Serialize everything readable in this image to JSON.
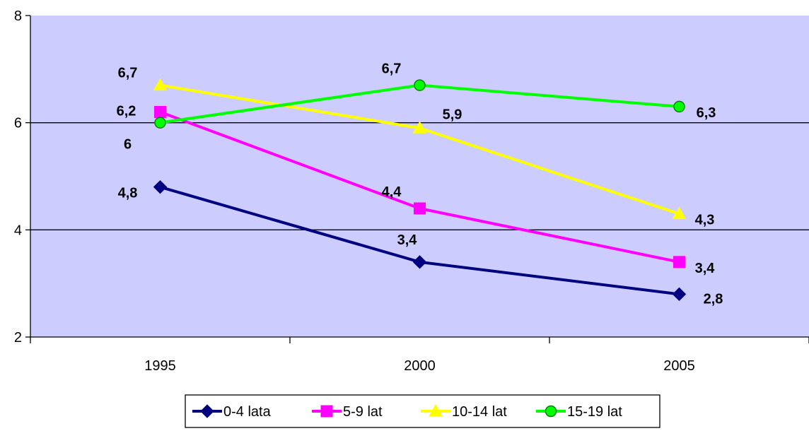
{
  "chart_data": {
    "type": "line",
    "title": "",
    "xlabel": "",
    "ylabel": "",
    "categories": [
      "1995",
      "2000",
      "2005"
    ],
    "ylim": [
      2,
      8
    ],
    "yticks": [
      2,
      4,
      6,
      8
    ],
    "y_gridlines": [
      4,
      6
    ],
    "plot_background": "#ccccff",
    "legend_position": "bottom",
    "series": [
      {
        "name": "0-4 lata",
        "color": "#000080",
        "marker": "diamond",
        "values": [
          4.8,
          3.4,
          2.8
        ],
        "labels": [
          "4,8",
          "3,4",
          "2,8"
        ]
      },
      {
        "name": "5-9 lat",
        "color": "#ff00ff",
        "marker": "square",
        "values": [
          6.2,
          4.4,
          3.4
        ],
        "labels": [
          "6,2",
          "4,4",
          "3,4"
        ]
      },
      {
        "name": "10-14 lat",
        "color": "#ffff00",
        "marker": "triangle",
        "values": [
          6.7,
          5.9,
          4.3
        ],
        "labels": [
          "6,7",
          "5,9",
          "4,3"
        ]
      },
      {
        "name": "15-19 lat",
        "color": "#00ff00",
        "marker": "circle",
        "values": [
          6.0,
          6.7,
          6.3
        ],
        "labels": [
          "6",
          "6,7",
          "6,3"
        ]
      }
    ]
  }
}
